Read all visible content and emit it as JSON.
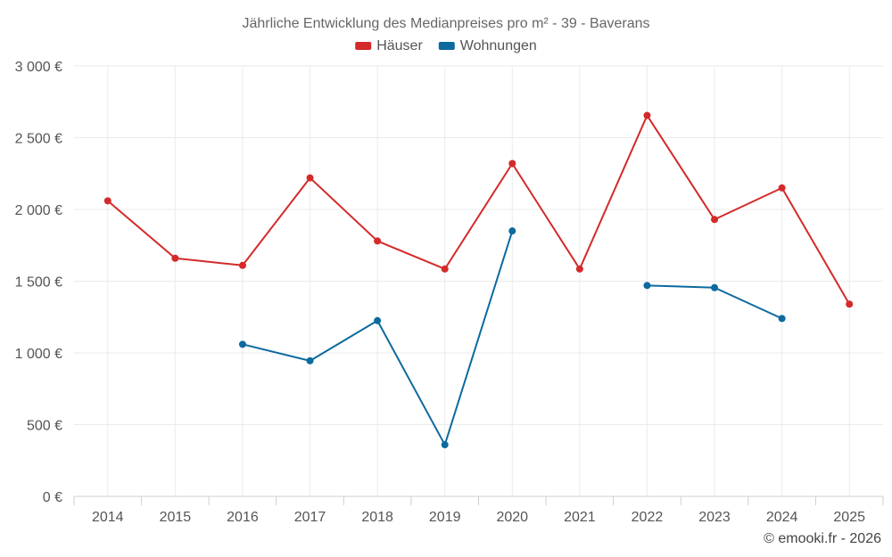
{
  "chart_data": {
    "type": "line",
    "title": "Jährliche Entwicklung des Medianpreises pro m² - 39 - Baverans",
    "xlabel": "",
    "ylabel": "",
    "categories": [
      "2014",
      "2015",
      "2016",
      "2017",
      "2018",
      "2019",
      "2020",
      "2021",
      "2022",
      "2023",
      "2024",
      "2025"
    ],
    "ylim": [
      0,
      3000
    ],
    "yticks": [
      0,
      500,
      1000,
      1500,
      2000,
      2500,
      3000
    ],
    "ytick_labels": [
      "0 €",
      "500 €",
      "1 000 €",
      "1 500 €",
      "2 000 €",
      "2 500 €",
      "3 000 €"
    ],
    "grid": true,
    "legend_position": "top-center",
    "series": [
      {
        "name": "Häuser",
        "color": "#d42a2a",
        "values": [
          2060,
          1660,
          1610,
          2220,
          1780,
          1585,
          2320,
          1585,
          2655,
          1930,
          2150,
          1340
        ]
      },
      {
        "name": "Wohnungen",
        "color": "#0c6a9e",
        "values": [
          null,
          null,
          1060,
          945,
          1225,
          360,
          1850,
          null,
          1470,
          1455,
          1240,
          null
        ]
      }
    ]
  },
  "credit": "© emooki.fr - 2026"
}
